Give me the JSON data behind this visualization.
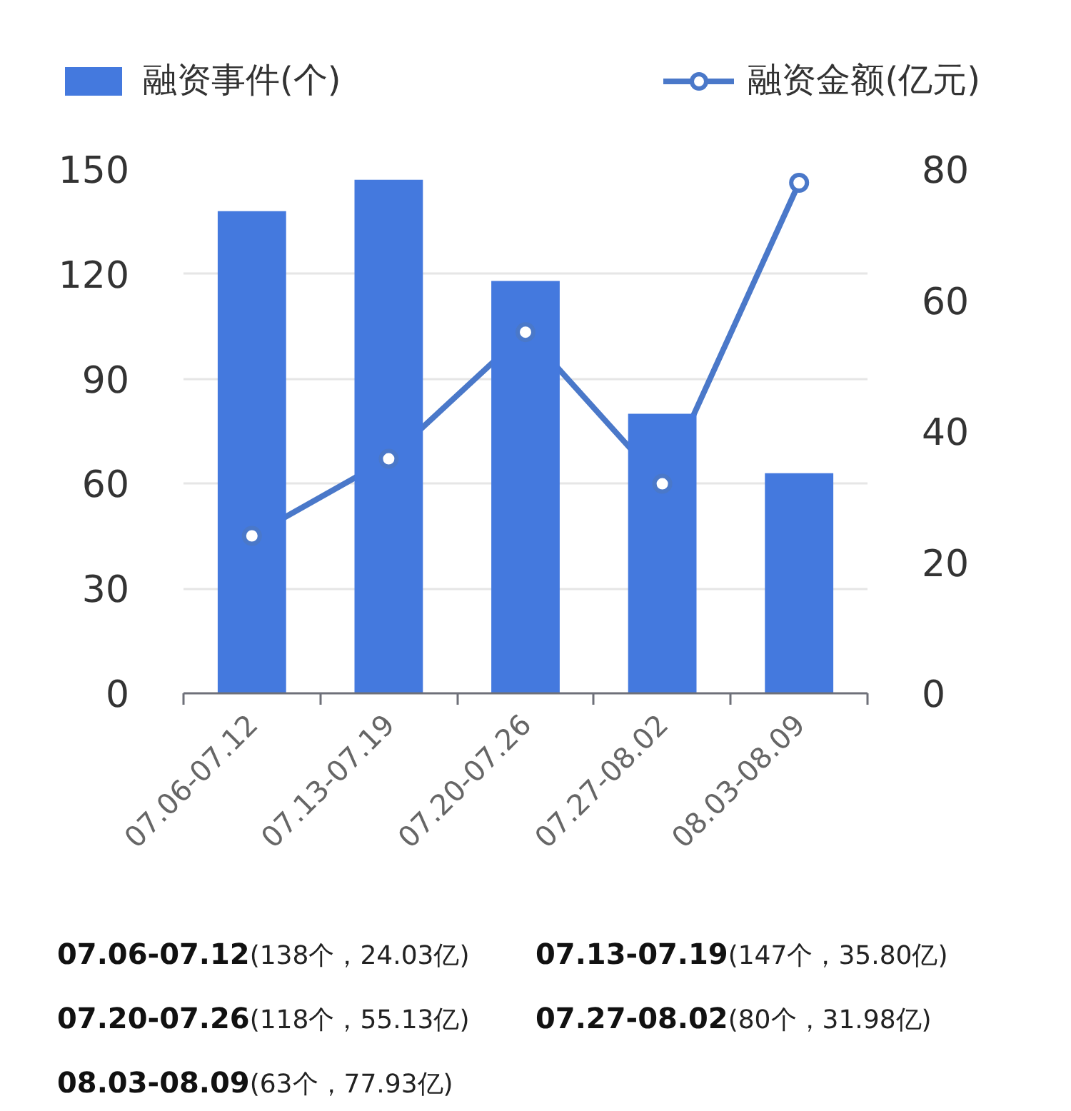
{
  "chart_data": {
    "type": "bar",
    "categories": [
      "07.06-07.12",
      "07.13-07.19",
      "07.20-07.26",
      "07.27-08.02",
      "08.03-08.09"
    ],
    "series": [
      {
        "name": "融资事件(个)",
        "color": "#4479de",
        "values": [
          138,
          147,
          118,
          80,
          63
        ]
      },
      {
        "name": "融资金额(亿元)",
        "type": "line",
        "axis": "y2",
        "color": "#4a78c9",
        "values": [
          24.03,
          35.8,
          55.13,
          31.98,
          77.93
        ]
      }
    ],
    "ylim": [
      0,
      150
    ],
    "yticks": [
      0,
      30,
      60,
      90,
      120,
      150
    ],
    "y2lim": [
      0,
      80
    ],
    "y2ticks": [
      0,
      20,
      40,
      60,
      80
    ],
    "grid": "y",
    "legend": "top",
    "marker": "circle",
    "line_style": "solid",
    "annotations": [
      "(138个，24.03亿)",
      "(147个，35.80亿)",
      "(118个，55.13亿)",
      "(80个，31.98亿)",
      "(63个，77.93亿)"
    ]
  }
}
